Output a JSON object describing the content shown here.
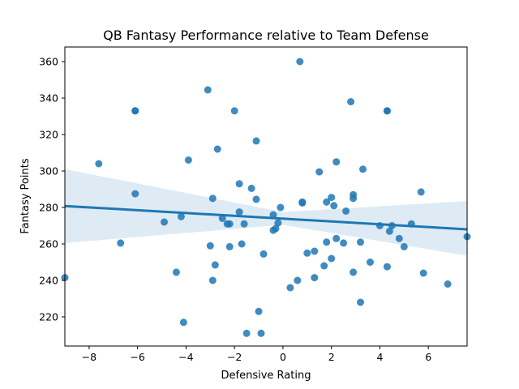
{
  "chart_data": {
    "type": "scatter",
    "title": "QB Fantasy Performance relative to Team Defense",
    "xlabel": "Defensive Rating",
    "ylabel": "Fantasy Points",
    "xlim": [
      -9.0,
      7.6
    ],
    "ylim": [
      204,
      368
    ],
    "xticks": [
      -8,
      -6,
      -4,
      -2,
      0,
      2,
      4,
      6
    ],
    "yticks": [
      220,
      240,
      260,
      280,
      300,
      320,
      340,
      360
    ],
    "grid": false,
    "legend": "none",
    "colors": {
      "points": "#1f77b4",
      "line": "#1f77b4",
      "band": "#1f77b4"
    },
    "points": [
      {
        "x": -9.0,
        "y": 241.5
      },
      {
        "x": -7.6,
        "y": 304
      },
      {
        "x": -6.7,
        "y": 260.5
      },
      {
        "x": -6.1,
        "y": 333
      },
      {
        "x": -6.1,
        "y": 333
      },
      {
        "x": -6.1,
        "y": 287.5
      },
      {
        "x": -4.9,
        "y": 272
      },
      {
        "x": -4.4,
        "y": 244.5
      },
      {
        "x": -4.2,
        "y": 275
      },
      {
        "x": -4.1,
        "y": 217
      },
      {
        "x": -3.9,
        "y": 306
      },
      {
        "x": -3.1,
        "y": 344.5
      },
      {
        "x": -3.0,
        "y": 259
      },
      {
        "x": -2.9,
        "y": 285
      },
      {
        "x": -2.9,
        "y": 240
      },
      {
        "x": -2.8,
        "y": 248.5
      },
      {
        "x": -2.7,
        "y": 312
      },
      {
        "x": -2.5,
        "y": 274
      },
      {
        "x": -2.3,
        "y": 271
      },
      {
        "x": -2.2,
        "y": 258.5
      },
      {
        "x": -2.2,
        "y": 271
      },
      {
        "x": -2.0,
        "y": 333
      },
      {
        "x": -1.8,
        "y": 277.5
      },
      {
        "x": -1.8,
        "y": 293
      },
      {
        "x": -1.7,
        "y": 260
      },
      {
        "x": -1.6,
        "y": 271
      },
      {
        "x": -1.5,
        "y": 211
      },
      {
        "x": -1.3,
        "y": 290.5
      },
      {
        "x": -1.1,
        "y": 284.5
      },
      {
        "x": -1.1,
        "y": 316.5
      },
      {
        "x": -1.0,
        "y": 223
      },
      {
        "x": -0.9,
        "y": 211
      },
      {
        "x": -0.8,
        "y": 254.5
      },
      {
        "x": -0.4,
        "y": 276
      },
      {
        "x": -0.4,
        "y": 267.5
      },
      {
        "x": -0.3,
        "y": 268.5
      },
      {
        "x": -0.2,
        "y": 271.5
      },
      {
        "x": -0.1,
        "y": 280
      },
      {
        "x": 0.3,
        "y": 236
      },
      {
        "x": 0.6,
        "y": 240
      },
      {
        "x": 0.7,
        "y": 360
      },
      {
        "x": 0.8,
        "y": 282.5
      },
      {
        "x": 0.8,
        "y": 283
      },
      {
        "x": 1.0,
        "y": 255
      },
      {
        "x": 1.3,
        "y": 256
      },
      {
        "x": 1.3,
        "y": 241.5
      },
      {
        "x": 1.5,
        "y": 299.5
      },
      {
        "x": 1.7,
        "y": 248
      },
      {
        "x": 1.8,
        "y": 283
      },
      {
        "x": 1.8,
        "y": 261
      },
      {
        "x": 2.0,
        "y": 285.5
      },
      {
        "x": 2.0,
        "y": 252
      },
      {
        "x": 2.1,
        "y": 281
      },
      {
        "x": 2.2,
        "y": 305
      },
      {
        "x": 2.2,
        "y": 263
      },
      {
        "x": 2.5,
        "y": 260.5
      },
      {
        "x": 2.6,
        "y": 278
      },
      {
        "x": 2.8,
        "y": 338
      },
      {
        "x": 2.9,
        "y": 287
      },
      {
        "x": 2.9,
        "y": 285
      },
      {
        "x": 2.9,
        "y": 244.5
      },
      {
        "x": 3.2,
        "y": 228
      },
      {
        "x": 3.2,
        "y": 261
      },
      {
        "x": 3.3,
        "y": 301
      },
      {
        "x": 3.6,
        "y": 250
      },
      {
        "x": 4.0,
        "y": 270
      },
      {
        "x": 4.3,
        "y": 333
      },
      {
        "x": 4.3,
        "y": 333
      },
      {
        "x": 4.3,
        "y": 247.5
      },
      {
        "x": 4.4,
        "y": 267
      },
      {
        "x": 4.5,
        "y": 270
      },
      {
        "x": 4.8,
        "y": 263
      },
      {
        "x": 5.0,
        "y": 258.5
      },
      {
        "x": 5.3,
        "y": 271
      },
      {
        "x": 5.7,
        "y": 288.5
      },
      {
        "x": 5.8,
        "y": 244
      },
      {
        "x": 6.8,
        "y": 238
      },
      {
        "x": 7.6,
        "y": 264
      }
    ],
    "regression": {
      "x": [
        -9.0,
        7.6
      ],
      "y": [
        280.8,
        268.0
      ],
      "ci_upper": [
        301,
        283.5
      ],
      "ci_lower": [
        260.5,
        253.5
      ],
      "ci_mid": {
        "x": 0.0,
        "upper": 277.5,
        "lower": 270.5
      }
    }
  }
}
